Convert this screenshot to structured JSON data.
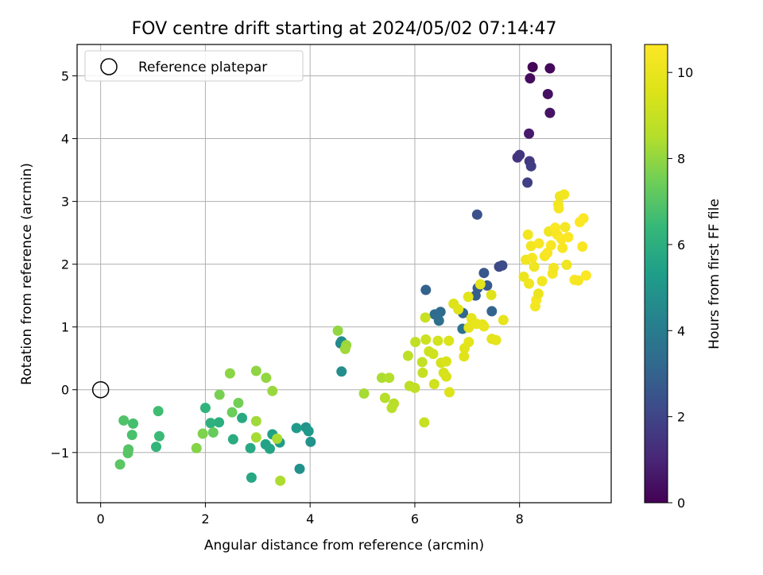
{
  "chart_data": {
    "type": "scatter",
    "title": "FOV centre drift starting at 2024/05/02 07:14:47",
    "xlabel": "Angular distance from reference (arcmin)",
    "ylabel": "Rotation from reference (arcmin)",
    "xlim": [
      -0.45,
      9.75
    ],
    "ylim": [
      -1.8,
      5.5
    ],
    "x_ticks": [
      0,
      2,
      4,
      6,
      8
    ],
    "y_ticks": [
      -1,
      0,
      1,
      2,
      3,
      4,
      5
    ],
    "grid": true,
    "legend": {
      "location": "top-left",
      "entries": [
        "Reference platepar"
      ]
    },
    "reference": {
      "name": "Reference platepar",
      "x": 0,
      "y": 0
    },
    "colorbar": {
      "label": "Hours from first FF file",
      "min": 0,
      "max": 10.65,
      "ticks": [
        0,
        2,
        4,
        6,
        8,
        10
      ],
      "colormap": "viridis"
    },
    "points": [
      {
        "x": 8.25,
        "y": 5.14,
        "c": 0.1
      },
      {
        "x": 8.58,
        "y": 5.12,
        "c": 0.2
      },
      {
        "x": 8.2,
        "y": 4.96,
        "c": 0.3
      },
      {
        "x": 8.54,
        "y": 4.71,
        "c": 0.4
      },
      {
        "x": 8.58,
        "y": 4.41,
        "c": 0.5
      },
      {
        "x": 8.18,
        "y": 4.08,
        "c": 0.7
      },
      {
        "x": 7.96,
        "y": 3.7,
        "c": 1.4
      },
      {
        "x": 8.0,
        "y": 3.74,
        "c": 1.5
      },
      {
        "x": 8.19,
        "y": 3.64,
        "c": 1.6
      },
      {
        "x": 8.22,
        "y": 3.56,
        "c": 1.7
      },
      {
        "x": 8.15,
        "y": 3.3,
        "c": 1.8
      },
      {
        "x": 7.19,
        "y": 2.79,
        "c": 2.4
      },
      {
        "x": 7.61,
        "y": 1.96,
        "c": 2.1
      },
      {
        "x": 7.67,
        "y": 1.98,
        "c": 2.2
      },
      {
        "x": 7.32,
        "y": 1.86,
        "c": 2.6
      },
      {
        "x": 7.38,
        "y": 1.66,
        "c": 2.7
      },
      {
        "x": 7.2,
        "y": 1.62,
        "c": 2.8
      },
      {
        "x": 7.16,
        "y": 1.5,
        "c": 2.9
      },
      {
        "x": 6.21,
        "y": 1.59,
        "c": 3.0
      },
      {
        "x": 7.47,
        "y": 1.25,
        "c": 3.1
      },
      {
        "x": 6.92,
        "y": 1.22,
        "c": 3.2
      },
      {
        "x": 6.49,
        "y": 1.24,
        "c": 3.3
      },
      {
        "x": 6.38,
        "y": 1.2,
        "c": 3.4
      },
      {
        "x": 6.46,
        "y": 1.1,
        "c": 3.5
      },
      {
        "x": 6.91,
        "y": 0.97,
        "c": 3.6
      },
      {
        "x": 4.58,
        "y": 0.74,
        "c": 4.5
      },
      {
        "x": 4.6,
        "y": 0.77,
        "c": 4.6
      },
      {
        "x": 4.6,
        "y": 0.29,
        "c": 4.7
      },
      {
        "x": 3.8,
        "y": -1.26,
        "c": 4.8
      },
      {
        "x": 4.01,
        "y": -0.83,
        "c": 4.9
      },
      {
        "x": 3.92,
        "y": -0.6,
        "c": 5.0
      },
      {
        "x": 3.97,
        "y": -0.66,
        "c": 5.1
      },
      {
        "x": 3.74,
        "y": -0.61,
        "c": 5.2
      },
      {
        "x": 3.42,
        "y": -0.84,
        "c": 5.3
      },
      {
        "x": 3.28,
        "y": -0.71,
        "c": 5.4
      },
      {
        "x": 3.15,
        "y": -0.87,
        "c": 5.5
      },
      {
        "x": 3.23,
        "y": -0.94,
        "c": 5.6
      },
      {
        "x": 2.88,
        "y": -1.4,
        "c": 5.7
      },
      {
        "x": 2.86,
        "y": -0.93,
        "c": 5.75
      },
      {
        "x": 2.7,
        "y": -0.45,
        "c": 5.8
      },
      {
        "x": 2.53,
        "y": -0.79,
        "c": 5.9
      },
      {
        "x": 2.26,
        "y": -0.52,
        "c": 6.0
      },
      {
        "x": 2.1,
        "y": -0.53,
        "c": 6.1
      },
      {
        "x": 2.0,
        "y": -0.29,
        "c": 6.2
      },
      {
        "x": 1.06,
        "y": -0.91,
        "c": 6.3
      },
      {
        "x": 1.12,
        "y": -0.74,
        "c": 6.5
      },
      {
        "x": 1.1,
        "y": -0.34,
        "c": 6.6
      },
      {
        "x": 0.62,
        "y": -0.54,
        "c": 6.7
      },
      {
        "x": 0.6,
        "y": -0.72,
        "c": 6.8
      },
      {
        "x": 0.44,
        "y": -0.49,
        "c": 6.9
      },
      {
        "x": 0.53,
        "y": -0.95,
        "c": 7.0
      },
      {
        "x": 0.52,
        "y": -1.01,
        "c": 7.05
      },
      {
        "x": 0.37,
        "y": -1.19,
        "c": 7.1
      },
      {
        "x": 2.15,
        "y": -0.68,
        "c": 7.3
      },
      {
        "x": 2.51,
        "y": -0.36,
        "c": 7.4
      },
      {
        "x": 2.63,
        "y": -0.21,
        "c": 7.5
      },
      {
        "x": 2.27,
        "y": -0.08,
        "c": 7.6
      },
      {
        "x": 1.95,
        "y": -0.7,
        "c": 7.7
      },
      {
        "x": 1.83,
        "y": -0.93,
        "c": 7.8
      },
      {
        "x": 2.47,
        "y": 0.26,
        "c": 7.9
      },
      {
        "x": 2.97,
        "y": 0.3,
        "c": 7.95
      },
      {
        "x": 3.16,
        "y": 0.19,
        "c": 8.0
      },
      {
        "x": 3.28,
        "y": -0.02,
        "c": 8.1
      },
      {
        "x": 2.97,
        "y": -0.5,
        "c": 8.2
      },
      {
        "x": 2.97,
        "y": -0.76,
        "c": 8.3
      },
      {
        "x": 3.37,
        "y": -0.78,
        "c": 8.35
      },
      {
        "x": 3.43,
        "y": -1.45,
        "c": 8.4
      },
      {
        "x": 4.53,
        "y": 0.94,
        "c": 8.0
      },
      {
        "x": 4.69,
        "y": 0.71,
        "c": 8.1
      },
      {
        "x": 4.67,
        "y": 0.65,
        "c": 8.2
      },
      {
        "x": 5.03,
        "y": -0.06,
        "c": 8.3
      },
      {
        "x": 5.37,
        "y": 0.19,
        "c": 8.4
      },
      {
        "x": 5.51,
        "y": 0.19,
        "c": 8.5
      },
      {
        "x": 5.43,
        "y": -0.13,
        "c": 8.55
      },
      {
        "x": 5.6,
        "y": -0.22,
        "c": 8.6
      },
      {
        "x": 5.56,
        "y": -0.29,
        "c": 8.65
      },
      {
        "x": 5.87,
        "y": 0.54,
        "c": 8.7
      },
      {
        "x": 5.9,
        "y": 0.06,
        "c": 8.75
      },
      {
        "x": 6.0,
        "y": 0.03,
        "c": 8.8
      },
      {
        "x": 6.01,
        "y": 0.76,
        "c": 8.85
      },
      {
        "x": 6.14,
        "y": 0.44,
        "c": 8.9
      },
      {
        "x": 6.15,
        "y": 0.27,
        "c": 8.95
      },
      {
        "x": 6.18,
        "y": -0.52,
        "c": 9.0
      },
      {
        "x": 6.2,
        "y": 1.15,
        "c": 9.05
      },
      {
        "x": 6.21,
        "y": 0.8,
        "c": 9.1
      },
      {
        "x": 6.27,
        "y": 0.61,
        "c": 9.15
      },
      {
        "x": 6.35,
        "y": 0.57,
        "c": 9.2
      },
      {
        "x": 6.37,
        "y": 0.09,
        "c": 9.25
      },
      {
        "x": 6.44,
        "y": 0.78,
        "c": 9.3
      },
      {
        "x": 6.5,
        "y": 0.43,
        "c": 9.35
      },
      {
        "x": 6.55,
        "y": 0.27,
        "c": 9.4
      },
      {
        "x": 6.6,
        "y": 0.21,
        "c": 9.45
      },
      {
        "x": 6.6,
        "y": 0.45,
        "c": 9.5
      },
      {
        "x": 6.65,
        "y": 0.78,
        "c": 9.55
      },
      {
        "x": 6.66,
        "y": -0.04,
        "c": 9.6
      },
      {
        "x": 6.74,
        "y": 1.37,
        "c": 9.6
      },
      {
        "x": 6.83,
        "y": 1.28,
        "c": 9.65
      },
      {
        "x": 6.94,
        "y": 0.53,
        "c": 9.7
      },
      {
        "x": 6.95,
        "y": 0.66,
        "c": 9.75
      },
      {
        "x": 7.02,
        "y": 1.48,
        "c": 9.8
      },
      {
        "x": 7.03,
        "y": 0.99,
        "c": 9.8
      },
      {
        "x": 7.03,
        "y": 0.76,
        "c": 9.85
      },
      {
        "x": 7.08,
        "y": 1.14,
        "c": 9.9
      },
      {
        "x": 7.1,
        "y": 1.05,
        "c": 9.95
      },
      {
        "x": 7.18,
        "y": 1.05,
        "c": 10.0
      },
      {
        "x": 7.25,
        "y": 1.68,
        "c": 9.8
      },
      {
        "x": 7.29,
        "y": 1.04,
        "c": 9.9
      },
      {
        "x": 7.32,
        "y": 1.01,
        "c": 10.0
      },
      {
        "x": 7.46,
        "y": 1.51,
        "c": 9.7
      },
      {
        "x": 7.47,
        "y": 0.81,
        "c": 9.8
      },
      {
        "x": 7.55,
        "y": 0.79,
        "c": 9.9
      },
      {
        "x": 7.69,
        "y": 1.11,
        "c": 9.9
      },
      {
        "x": 8.08,
        "y": 1.8,
        "c": 10.1
      },
      {
        "x": 8.12,
        "y": 2.07,
        "c": 10.2
      },
      {
        "x": 8.16,
        "y": 2.47,
        "c": 10.3
      },
      {
        "x": 8.18,
        "y": 1.69,
        "c": 10.2
      },
      {
        "x": 8.22,
        "y": 2.29,
        "c": 10.3
      },
      {
        "x": 8.24,
        "y": 2.1,
        "c": 10.4
      },
      {
        "x": 8.28,
        "y": 1.96,
        "c": 10.2
      },
      {
        "x": 8.3,
        "y": 1.33,
        "c": 10.3
      },
      {
        "x": 8.32,
        "y": 1.43,
        "c": 10.4
      },
      {
        "x": 8.36,
        "y": 1.53,
        "c": 10.1
      },
      {
        "x": 8.37,
        "y": 2.33,
        "c": 10.5
      },
      {
        "x": 8.43,
        "y": 1.73,
        "c": 10.3
      },
      {
        "x": 8.48,
        "y": 2.13,
        "c": 10.4
      },
      {
        "x": 8.53,
        "y": 2.18,
        "c": 10.5
      },
      {
        "x": 8.56,
        "y": 2.52,
        "c": 10.2
      },
      {
        "x": 8.6,
        "y": 2.3,
        "c": 10.5
      },
      {
        "x": 8.63,
        "y": 1.85,
        "c": 10.4
      },
      {
        "x": 8.65,
        "y": 1.94,
        "c": 10.3
      },
      {
        "x": 8.68,
        "y": 2.58,
        "c": 10.6
      },
      {
        "x": 8.72,
        "y": 2.47,
        "c": 10.5
      },
      {
        "x": 8.74,
        "y": 2.95,
        "c": 10.3
      },
      {
        "x": 8.75,
        "y": 2.89,
        "c": 10.4
      },
      {
        "x": 8.77,
        "y": 3.08,
        "c": 10.2
      },
      {
        "x": 8.8,
        "y": 2.4,
        "c": 10.6
      },
      {
        "x": 8.82,
        "y": 2.26,
        "c": 10.5
      },
      {
        "x": 8.85,
        "y": 3.11,
        "c": 10.3
      },
      {
        "x": 8.87,
        "y": 2.59,
        "c": 10.4
      },
      {
        "x": 8.9,
        "y": 1.99,
        "c": 10.2
      },
      {
        "x": 8.93,
        "y": 2.43,
        "c": 10.6
      },
      {
        "x": 9.05,
        "y": 1.75,
        "c": 10.5
      },
      {
        "x": 9.12,
        "y": 1.74,
        "c": 10.4
      },
      {
        "x": 9.15,
        "y": 2.67,
        "c": 10.6
      },
      {
        "x": 9.2,
        "y": 2.28,
        "c": 10.5
      },
      {
        "x": 9.22,
        "y": 2.73,
        "c": 10.6
      },
      {
        "x": 9.27,
        "y": 1.82,
        "c": 10.6
      }
    ]
  }
}
